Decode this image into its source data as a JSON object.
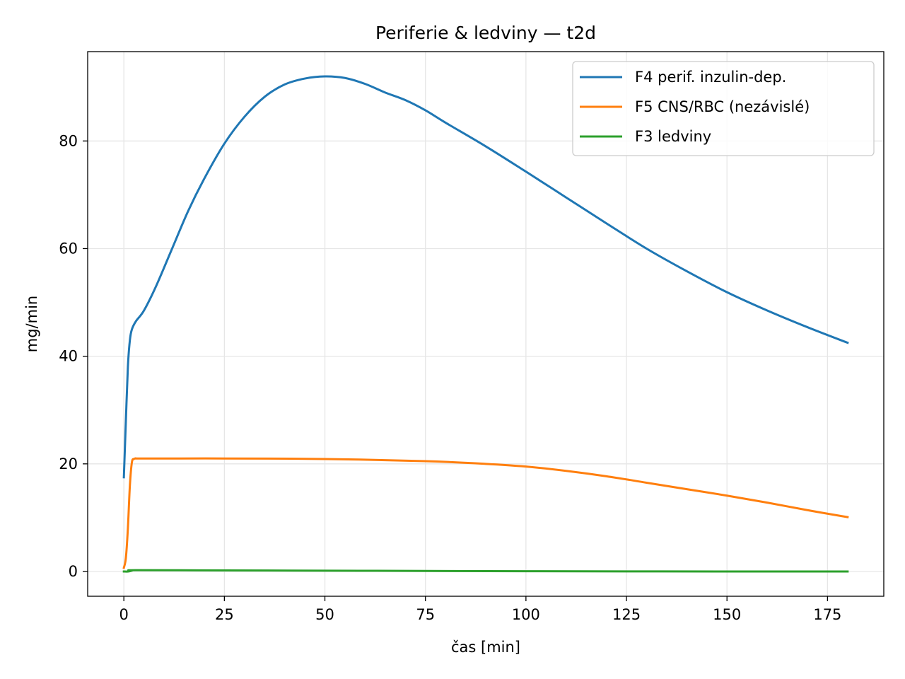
{
  "chart_data": {
    "type": "line",
    "title": "Periferie & ledviny — t2d",
    "xlabel": "čas [min]",
    "ylabel": "mg/min",
    "xlim": [
      -9,
      189
    ],
    "ylim": [
      -4.6,
      96.6
    ],
    "xticks": [
      0,
      25,
      50,
      75,
      100,
      125,
      150,
      175
    ],
    "yticks": [
      0,
      20,
      40,
      60,
      80
    ],
    "grid": true,
    "legend_position": "top-right",
    "series": [
      {
        "name": "F4 perif. inzulin-dep.",
        "color": "#1f77b4",
        "x": [
          0,
          0.5,
          1,
          1.5,
          2,
          3,
          5,
          8,
          12,
          16,
          20,
          25,
          30,
          35,
          40,
          45,
          50,
          55,
          60,
          65,
          70,
          75,
          80,
          90,
          100,
          110,
          120,
          130,
          140,
          150,
          160,
          170,
          180
        ],
        "y": [
          17.5,
          28,
          38,
          43,
          45,
          46.5,
          48.5,
          53,
          60,
          67,
          73,
          79.5,
          84.5,
          88.2,
          90.5,
          91.6,
          92,
          91.7,
          90.6,
          89,
          87.6,
          85.7,
          83.4,
          79,
          74.3,
          69.5,
          64.7,
          60,
          55.8,
          51.9,
          48.5,
          45.4,
          42.5
        ]
      },
      {
        "name": "F5 CNS/RBC (nezávislé)",
        "color": "#ff7f0e",
        "x": [
          0,
          0.5,
          1,
          1.5,
          2,
          2.5,
          3,
          5,
          25,
          50,
          75,
          90,
          100,
          110,
          120,
          130,
          140,
          150,
          160,
          170,
          180
        ],
        "y": [
          0.7,
          2.5,
          8,
          16,
          20.3,
          20.9,
          21,
          21,
          21,
          20.9,
          20.5,
          20,
          19.5,
          18.7,
          17.7,
          16.5,
          15.3,
          14.1,
          12.8,
          11.4,
          10.1
        ]
      },
      {
        "name": "F3 ledviny",
        "color": "#2ca02c",
        "x": [
          0,
          1,
          2,
          3,
          25,
          50,
          75,
          100,
          125,
          150,
          180
        ],
        "y": [
          0,
          0,
          0.15,
          0.25,
          0.2,
          0.15,
          0.1,
          0.05,
          0.02,
          0,
          0
        ]
      }
    ]
  }
}
